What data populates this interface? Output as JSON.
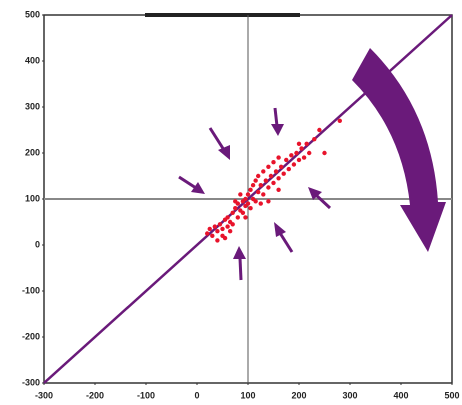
{
  "chart_data": {
    "type": "scatter",
    "x": [
      20,
      25,
      30,
      35,
      40,
      45,
      50,
      55,
      60,
      60,
      65,
      70,
      70,
      75,
      80,
      80,
      85,
      90,
      90,
      95,
      95,
      100,
      100,
      105,
      105,
      110,
      110,
      115,
      115,
      120,
      120,
      125,
      130,
      130,
      135,
      140,
      140,
      145,
      150,
      150,
      155,
      160,
      160,
      165,
      170,
      175,
      180,
      185,
      190,
      195,
      200,
      205,
      210,
      215,
      220,
      230,
      240,
      280,
      250,
      40,
      50,
      85,
      95,
      75,
      65,
      125,
      140,
      160,
      200,
      55
    ],
    "y": [
      25,
      35,
      20,
      40,
      30,
      45,
      35,
      55,
      40,
      60,
      50,
      70,
      45,
      80,
      60,
      90,
      75,
      95,
      70,
      100,
      85,
      110,
      90,
      80,
      120,
      100,
      130,
      95,
      140,
      115,
      150,
      130,
      110,
      160,
      140,
      125,
      170,
      150,
      135,
      180,
      160,
      145,
      190,
      170,
      155,
      185,
      165,
      195,
      175,
      200,
      185,
      210,
      190,
      220,
      200,
      230,
      250,
      270,
      200,
      10,
      20,
      110,
      60,
      95,
      30,
      90,
      95,
      120,
      220,
      15
    ],
    "color": "#e8132b",
    "line_color": "#6a1a7a",
    "xlim": [
      -300,
      500
    ],
    "ylim": [
      -300,
      500
    ],
    "xticks": [
      -300,
      -200,
      -100,
      0,
      100,
      200,
      300,
      400,
      500
    ],
    "yticks": [
      -300,
      -200,
      -100,
      0,
      100,
      200,
      300,
      400,
      500
    ],
    "hline": 100,
    "vline": 100,
    "diagonal": true
  }
}
